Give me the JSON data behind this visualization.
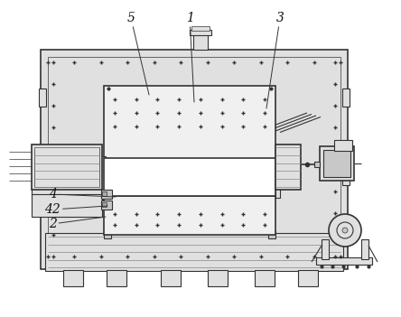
{
  "bg_color": "#ffffff",
  "lc": "#333333",
  "lc_light": "#888888",
  "fc_white": "#ffffff",
  "fc_vlight": "#f0f0f0",
  "fc_light": "#e0e0e0",
  "fc_mid": "#c8c8c8",
  "fc_dark": "#aaaaaa",
  "label_fontsize": 10,
  "annot_fontsize": 9
}
